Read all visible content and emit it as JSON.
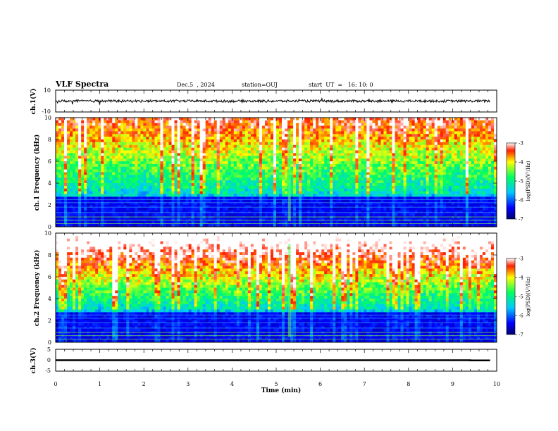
{
  "header": {
    "title": "VLF Spectra",
    "date": "Dec.5  , 2024",
    "station": "station=OUJ",
    "start": "start  UT  =   16: 10: 0"
  },
  "chart_data": [
    {
      "type": "line",
      "panel": "ch1-waveform",
      "ylabel": "ch.1(V)",
      "ylim": [
        -10,
        10
      ],
      "yticks": [
        "10",
        "-10"
      ],
      "xlim": [
        0,
        10
      ],
      "baseline": 0
    },
    {
      "type": "heatmap",
      "panel": "ch1-spectrogram",
      "ylabel": "ch.1 Frequency (kHz)",
      "ylim": [
        0,
        10
      ],
      "yticks": [
        "0",
        "2",
        "4",
        "6",
        "8",
        "10"
      ],
      "xlim": [
        0,
        10
      ],
      "colorbar": {
        "label": "log(PSD)(V²/Hz)",
        "range": [
          -7,
          -3
        ],
        "ticks": [
          "-3",
          "-4",
          "-5",
          "-6",
          "-7"
        ]
      }
    },
    {
      "type": "heatmap",
      "panel": "ch2-spectrogram",
      "ylabel": "ch.2 Frequency (kHz)",
      "ylim": [
        0,
        10
      ],
      "yticks": [
        "0",
        "2",
        "4",
        "6",
        "8",
        "10"
      ],
      "xlim": [
        0,
        10
      ],
      "colorbar": {
        "label": "log(PSD)(V²/Hz)",
        "range": [
          -7,
          -3
        ],
        "ticks": [
          "-3",
          "-4",
          "-5",
          "-6",
          "-7"
        ]
      }
    },
    {
      "type": "line",
      "panel": "ch3-waveform",
      "ylabel": "ch.3(V)",
      "ylim": [
        -5,
        5
      ],
      "yticks": [
        "5",
        "0",
        "-5"
      ],
      "xlim": [
        0,
        10
      ],
      "x": [
        0,
        9.4,
        9.4,
        9.85
      ],
      "y": [
        0,
        0,
        -0.1,
        -0.1
      ]
    }
  ],
  "xaxis": {
    "label": "Time  (min)",
    "ticks": [
      "0",
      "1",
      "2",
      "3",
      "4",
      "5",
      "6",
      "7",
      "8",
      "9",
      "10"
    ]
  }
}
